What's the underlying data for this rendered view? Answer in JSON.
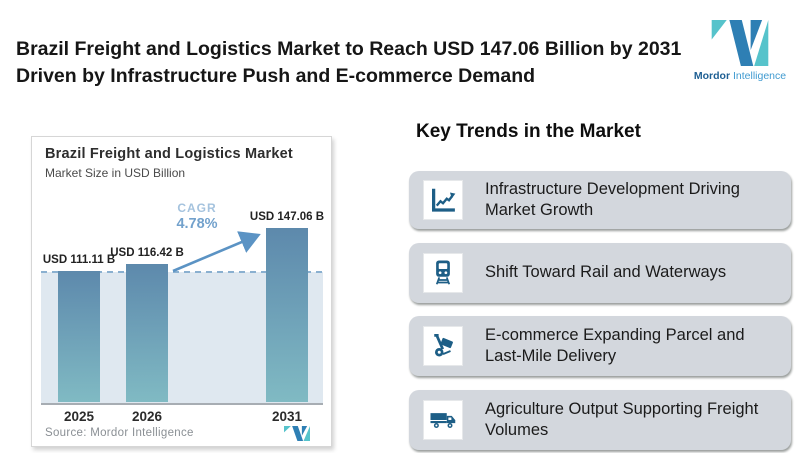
{
  "header": {
    "title": "Brazil Freight and Logistics Market to Reach USD 147.06 Billion by 2031 Driven by Infrastructure Push and E-commerce Demand",
    "logo": {
      "brand_bold": "Mordor",
      "brand_light": "Intelligence"
    }
  },
  "chart_data": {
    "type": "bar",
    "title": "Brazil Freight and Logistics Market",
    "subtitle": "Market Size in USD Billion",
    "categories": [
      "2025",
      "2026",
      "2031"
    ],
    "values": [
      111.11,
      116.42,
      147.06
    ],
    "value_labels": [
      "USD 111.11 B",
      "USD 116.42 B",
      "USD 147.06 B"
    ],
    "ylim": [
      0,
      147.06
    ],
    "reference_line_value": 111.11,
    "grid": false,
    "legend": false,
    "cagr": {
      "label": "CAGR",
      "value": "4.78%"
    },
    "source": "Source: Mordor Intelligence",
    "colors": {
      "bar_top": "#5d89ac",
      "bar_bottom": "#80bac3",
      "arrow": "#5b93c4",
      "dashed_line": "#8ab0d0",
      "plot_band": "#dfe8f0",
      "icon_blue": "#1d5e86",
      "logo_blue": "#2e7fb4",
      "logo_teal": "#56c3cb"
    }
  },
  "trends": {
    "heading": "Key Trends in the Market",
    "items": [
      {
        "icon": "line-chart-icon",
        "text": "Infrastructure Development Driving Market Growth"
      },
      {
        "icon": "train-icon",
        "text": "Shift Toward Rail and Waterways"
      },
      {
        "icon": "hand-truck-icon",
        "text": "E-commerce Expanding Parcel and Last-Mile Delivery"
      },
      {
        "icon": "truck-icon",
        "text": "Agriculture Output Supporting Freight Volumes"
      }
    ]
  }
}
